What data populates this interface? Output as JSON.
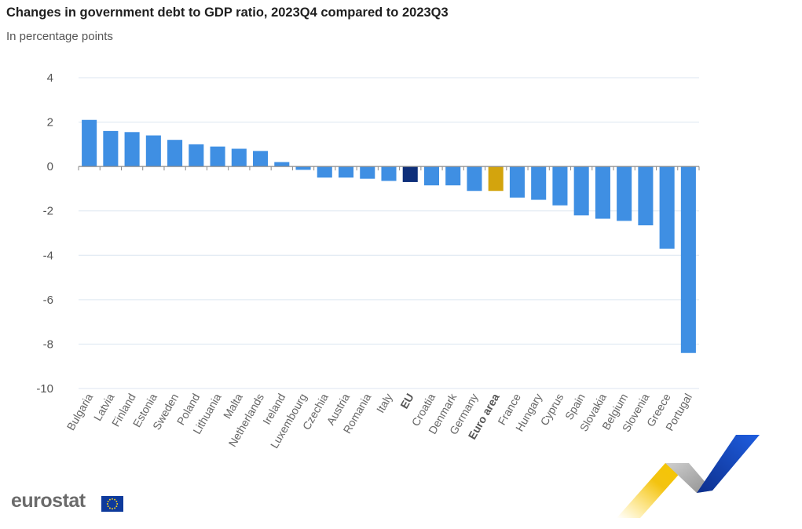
{
  "header": {
    "title": "Changes in government debt to GDP ratio, 2023Q4 compared to 2023Q3",
    "subtitle": "In percentage points"
  },
  "logo": {
    "text": "eurostat",
    "flag_icon": "eu-flag-icon"
  },
  "colors": {
    "country": "#3f8fe3",
    "eu": "#0e2f7a",
    "euro_area": "#d3a40d",
    "grid": "#dce6f0",
    "baseline": "#8a8a8a"
  },
  "chart_data": {
    "type": "bar",
    "title": "Changes in government debt to GDP ratio, 2023Q4 compared to 2023Q3",
    "subtitle": "In percentage points",
    "xlabel": "",
    "ylabel": "",
    "ylim": [
      -10,
      4
    ],
    "yticks": [
      4,
      2,
      0,
      -2,
      -4,
      -6,
      -8,
      -10
    ],
    "grid": true,
    "categories": [
      "Bulgaria",
      "Latvia",
      "Finland",
      "Estonia",
      "Sweden",
      "Poland",
      "Lithuania",
      "Malta",
      "Netherlands",
      "Ireland",
      "Luxembourg",
      "Czechia",
      "Austria",
      "Romania",
      "Italy",
      "EU",
      "Croatia",
      "Denmark",
      "Germany",
      "Euro area",
      "France",
      "Hungary",
      "Cyprus",
      "Spain",
      "Slovakia",
      "Belgium",
      "Slovenia",
      "Greece",
      "Portugal"
    ],
    "values": [
      2.1,
      1.6,
      1.55,
      1.4,
      1.2,
      1.0,
      0.9,
      0.8,
      0.7,
      0.2,
      -0.15,
      -0.5,
      -0.5,
      -0.55,
      -0.65,
      -0.7,
      -0.85,
      -0.85,
      -1.1,
      -1.1,
      -1.4,
      -1.5,
      -1.75,
      -2.2,
      -2.35,
      -2.45,
      -2.65,
      -3.7,
      -8.4
    ],
    "highlights": {
      "EU": "eu",
      "Euro area": "euro_area"
    }
  }
}
